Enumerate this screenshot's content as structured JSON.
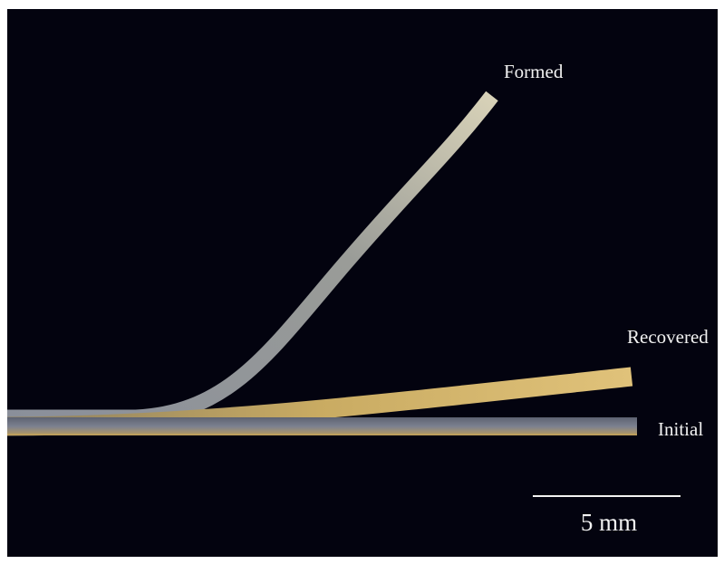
{
  "labels": {
    "formed": "Formed",
    "recovered": "Recovered",
    "initial": "Initial"
  },
  "scale_bar": {
    "label": "5 mm"
  }
}
